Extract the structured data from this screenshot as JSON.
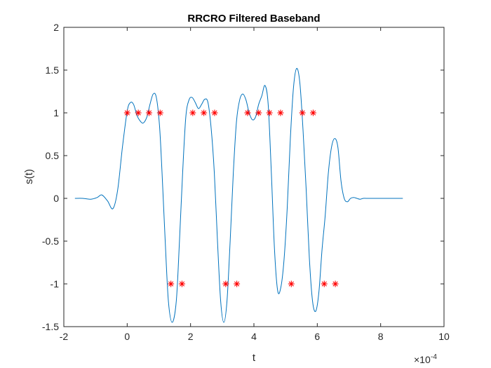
{
  "chart_data": {
    "type": "line",
    "title": "RRCRO Filtered Baseband",
    "xlabel": "t",
    "ylabel": "s(t)",
    "x_multiplier": {
      "base": "×10",
      "exponent": "-4"
    },
    "xlim": [
      -2,
      10
    ],
    "ylim": [
      -1.5,
      2
    ],
    "xticks": [
      -2,
      0,
      2,
      4,
      6,
      8,
      10
    ],
    "xtick_labels": [
      "-2",
      "0",
      "2",
      "4",
      "6",
      "8",
      "10"
    ],
    "yticks": [
      -1.5,
      -1,
      -0.5,
      0,
      0.5,
      1,
      1.5,
      2
    ],
    "ytick_labels": [
      "-1.5",
      "-1",
      "-0.5",
      "0",
      "0.5",
      "1",
      "1.5",
      "2"
    ],
    "grid": false,
    "box": true,
    "colors": {
      "line": "#0072BD",
      "markers": "#FF0000",
      "axes": "#262626"
    },
    "series": [
      {
        "kind": "line",
        "x": [
          -1.65,
          -1.4,
          -1.15,
          -0.95,
          -0.8,
          -0.62,
          -0.45,
          -0.3,
          -0.15,
          0.0,
          0.1,
          0.2,
          0.3,
          0.38,
          0.5,
          0.62,
          0.72,
          0.82,
          0.92,
          1.02,
          1.1,
          1.2,
          1.3,
          1.42,
          1.55,
          1.65,
          1.75,
          1.85,
          1.95,
          2.05,
          2.15,
          2.25,
          2.35,
          2.45,
          2.55,
          2.65,
          2.75,
          2.85,
          2.95,
          3.05,
          3.15,
          3.25,
          3.35,
          3.45,
          3.55,
          3.65,
          3.75,
          3.85,
          3.95,
          4.05,
          4.15,
          4.25,
          4.35,
          4.45,
          4.55,
          4.65,
          4.75,
          4.85,
          4.95,
          5.05,
          5.15,
          5.25,
          5.35,
          5.45,
          5.55,
          5.65,
          5.75,
          5.85,
          5.95,
          6.05,
          6.15,
          6.25,
          6.35,
          6.45,
          6.55,
          6.65,
          6.75,
          6.85,
          6.95,
          7.05,
          7.15,
          7.25,
          7.35,
          7.45,
          7.6,
          7.8,
          8.1,
          8.4,
          8.7
        ],
        "y": [
          0.0,
          0.0,
          -0.01,
          0.01,
          0.04,
          -0.03,
          -0.12,
          0.1,
          0.6,
          1.02,
          1.12,
          1.1,
          0.98,
          0.92,
          0.88,
          0.95,
          1.1,
          1.22,
          1.18,
          0.85,
          0.3,
          -0.5,
          -1.2,
          -1.45,
          -1.2,
          -0.5,
          0.3,
          0.95,
          1.15,
          1.18,
          1.12,
          1.05,
          1.1,
          1.16,
          1.12,
          0.82,
          0.3,
          -0.5,
          -1.2,
          -1.45,
          -1.2,
          -0.5,
          0.3,
          0.9,
          1.15,
          1.22,
          1.15,
          1.0,
          0.92,
          0.95,
          1.1,
          1.2,
          1.32,
          1.1,
          0.3,
          -0.6,
          -1.08,
          -1.04,
          -0.72,
          -0.12,
          0.7,
          1.3,
          1.52,
          1.35,
          0.8,
          0.1,
          -0.7,
          -1.2,
          -1.32,
          -1.1,
          -0.6,
          -0.2,
          0.3,
          0.6,
          0.7,
          0.6,
          0.2,
          0.0,
          -0.04,
          0.0,
          0.01,
          0.0,
          -0.01,
          0.0,
          0.0,
          0.0,
          0.0,
          0.0,
          0.0
        ]
      },
      {
        "kind": "markers",
        "marker": "*",
        "x": [
          0.0,
          0.35,
          0.69,
          1.04,
          1.38,
          1.73,
          2.07,
          2.42,
          2.76,
          3.11,
          3.46,
          3.8,
          4.15,
          4.49,
          4.84,
          5.18,
          5.53,
          5.87,
          6.22,
          6.57
        ],
        "y": [
          1,
          1,
          1,
          1,
          -1,
          -1,
          1,
          1,
          1,
          -1,
          -1,
          1,
          1,
          1,
          1,
          -1,
          1,
          1,
          -1,
          -1
        ]
      }
    ]
  }
}
